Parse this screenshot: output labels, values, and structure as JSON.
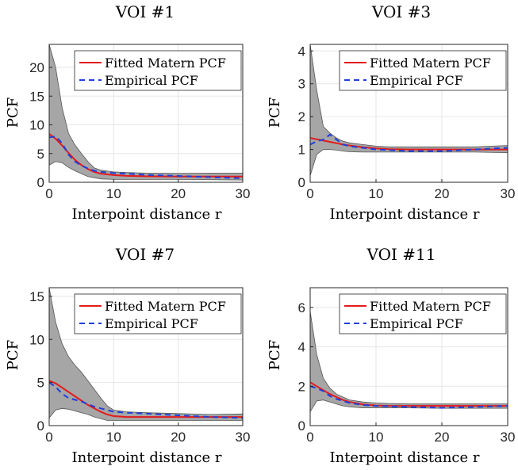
{
  "colors": {
    "fitted": "#e41a1c",
    "empirical": "#1f3fdc",
    "envelope_fill": "#a6a6a6",
    "envelope_edge": "#555555",
    "grid": "#e6e6e6",
    "axis": "#262626"
  },
  "chart_data": [
    {
      "type": "line",
      "title": "VOI #1",
      "xlabel": "Interpoint distance r",
      "ylabel": "PCF",
      "xlim": [
        0,
        30
      ],
      "ylim": [
        0,
        24
      ],
      "xticks": [
        0,
        10,
        20,
        30
      ],
      "yticks": [
        0,
        5,
        10,
        15,
        20
      ],
      "x_tick_labels": [
        "0",
        "10",
        "20",
        "30"
      ],
      "y_tick_labels": [
        "0",
        "5",
        "10",
        "15",
        "20"
      ],
      "grid": true,
      "legend": {
        "position": "top-right",
        "entries": [
          "Fitted Matern PCF",
          "Empirical PCF"
        ]
      },
      "x": [
        0,
        1,
        2,
        3,
        4,
        5,
        6,
        7,
        8,
        10,
        12,
        15,
        20,
        25,
        30
      ],
      "series": [
        {
          "name": "Fitted Matern PCF",
          "style": "solid",
          "values": [
            8.4,
            7.6,
            6.4,
            5.1,
            3.9,
            3.0,
            2.3,
            1.8,
            1.5,
            1.25,
            1.12,
            1.05,
            1.0,
            1.0,
            1.0
          ]
        },
        {
          "name": "Empirical PCF",
          "style": "dashed",
          "values": [
            7.8,
            8.0,
            6.8,
            4.8,
            3.6,
            2.9,
            2.4,
            2.0,
            1.8,
            1.6,
            1.5,
            1.3,
            1.1,
            0.9,
            0.7
          ]
        }
      ],
      "envelope": {
        "upper": [
          24,
          20,
          13,
          8.5,
          6.5,
          5.0,
          3.6,
          2.5,
          2.1,
          1.8,
          1.7,
          1.6,
          1.55,
          1.6,
          1.6
        ],
        "lower": [
          3.0,
          3.6,
          3.4,
          2.6,
          2.0,
          1.5,
          1.0,
          0.8,
          0.6,
          0.5,
          0.5,
          0.5,
          0.5,
          0.45,
          0.4
        ]
      }
    },
    {
      "type": "line",
      "title": "VOI #3",
      "xlabel": "Interpoint distance r",
      "ylabel": "PCF",
      "xlim": [
        0,
        30
      ],
      "ylim": [
        0,
        4.2
      ],
      "xticks": [
        0,
        10,
        20,
        30
      ],
      "yticks": [
        0,
        1,
        2,
        3,
        4
      ],
      "x_tick_labels": [
        "0",
        "10",
        "20",
        "30"
      ],
      "y_tick_labels": [
        "0",
        "1",
        "2",
        "3",
        "4"
      ],
      "grid": true,
      "legend": {
        "position": "top-right",
        "entries": [
          "Fitted Matern PCF",
          "Empirical PCF"
        ]
      },
      "x": [
        0,
        1,
        2,
        3,
        4,
        5,
        6,
        8,
        10,
        12,
        15,
        20,
        25,
        30
      ],
      "series": [
        {
          "name": "Fitted Matern PCF",
          "style": "solid",
          "values": [
            1.35,
            1.31,
            1.27,
            1.23,
            1.19,
            1.15,
            1.12,
            1.07,
            1.03,
            1.01,
            1.0,
            1.0,
            1.0,
            1.0
          ]
        },
        {
          "name": "Empirical PCF",
          "style": "dashed",
          "values": [
            1.15,
            1.25,
            1.3,
            1.45,
            1.3,
            1.15,
            1.1,
            1.05,
            1.0,
            0.98,
            0.95,
            0.95,
            1.0,
            1.05
          ]
        }
      ],
      "envelope": {
        "upper": [
          4.2,
          2.8,
          1.7,
          1.5,
          1.35,
          1.25,
          1.2,
          1.15,
          1.1,
          1.08,
          1.08,
          1.08,
          1.08,
          1.12
        ],
        "lower": [
          0.2,
          0.85,
          1.0,
          1.0,
          0.98,
          0.95,
          0.93,
          0.92,
          0.92,
          0.92,
          0.92,
          0.92,
          0.92,
          0.9
        ]
      }
    },
    {
      "type": "line",
      "title": "VOI #7",
      "xlabel": "Interpoint distance r",
      "ylabel": "PCF",
      "xlim": [
        0,
        30
      ],
      "ylim": [
        0,
        16
      ],
      "xticks": [
        0,
        10,
        20,
        30
      ],
      "yticks": [
        0,
        5,
        10,
        15
      ],
      "x_tick_labels": [
        "0",
        "10",
        "20",
        "30"
      ],
      "y_tick_labels": [
        "0",
        "5",
        "10",
        "15"
      ],
      "grid": true,
      "legend": {
        "position": "top-right",
        "entries": [
          "Fitted Matern PCF",
          "Empirical PCF"
        ]
      },
      "x": [
        0,
        1,
        2,
        3,
        4,
        5,
        6,
        7,
        8,
        9,
        10,
        12,
        15,
        20,
        25,
        30
      ],
      "series": [
        {
          "name": "Fitted Matern PCF",
          "style": "solid",
          "values": [
            5.2,
            4.9,
            4.4,
            3.9,
            3.4,
            2.9,
            2.4,
            2.0,
            1.6,
            1.3,
            1.1,
            1.0,
            1.0,
            1.0,
            1.0,
            1.0
          ]
        },
        {
          "name": "Empirical PCF",
          "style": "dashed",
          "values": [
            5.0,
            4.5,
            3.7,
            3.2,
            3.0,
            2.8,
            2.5,
            2.2,
            2.0,
            1.8,
            1.6,
            1.5,
            1.4,
            1.2,
            1.0,
            0.9
          ]
        }
      ],
      "envelope": {
        "upper": [
          16,
          12,
          9.5,
          8.0,
          7.0,
          6.2,
          5.2,
          4.2,
          3.2,
          2.3,
          1.8,
          1.6,
          1.5,
          1.4,
          1.3,
          1.35
        ],
        "lower": [
          0.9,
          1.8,
          2.0,
          1.9,
          1.7,
          1.5,
          1.3,
          1.0,
          0.8,
          0.6,
          0.6,
          0.6,
          0.6,
          0.6,
          0.6,
          0.6
        ]
      }
    },
    {
      "type": "line",
      "title": "VOI #11",
      "xlabel": "Interpoint distance r",
      "ylabel": "PCF",
      "xlim": [
        0,
        30
      ],
      "ylim": [
        0,
        7
      ],
      "xticks": [
        0,
        10,
        20,
        30
      ],
      "yticks": [
        0,
        2,
        4,
        6
      ],
      "x_tick_labels": [
        "0",
        "10",
        "20",
        "30"
      ],
      "y_tick_labels": [
        "0",
        "2",
        "4",
        "6"
      ],
      "grid": true,
      "legend": {
        "position": "top-right",
        "entries": [
          "Fitted Matern PCF",
          "Empirical PCF"
        ]
      },
      "x": [
        0,
        1,
        2,
        3,
        4,
        5,
        6,
        8,
        10,
        12,
        15,
        20,
        25,
        30
      ],
      "series": [
        {
          "name": "Fitted Matern PCF",
          "style": "solid",
          "values": [
            2.2,
            2.0,
            1.8,
            1.6,
            1.45,
            1.3,
            1.2,
            1.08,
            1.02,
            1.0,
            1.0,
            1.0,
            1.0,
            1.0
          ]
        },
        {
          "name": "Empirical PCF",
          "style": "dashed",
          "values": [
            2.0,
            1.9,
            1.75,
            1.5,
            1.35,
            1.25,
            1.15,
            1.05,
            1.0,
            0.98,
            0.95,
            0.9,
            0.95,
            1.0
          ]
        }
      ],
      "envelope": {
        "upper": [
          5.8,
          3.6,
          2.4,
          1.9,
          1.6,
          1.45,
          1.3,
          1.2,
          1.15,
          1.12,
          1.1,
          1.1,
          1.1,
          1.1
        ],
        "lower": [
          0.7,
          1.25,
          1.3,
          1.2,
          1.1,
          1.0,
          0.95,
          0.9,
          0.9,
          0.9,
          0.9,
          0.88,
          0.88,
          0.88
        ]
      }
    }
  ]
}
